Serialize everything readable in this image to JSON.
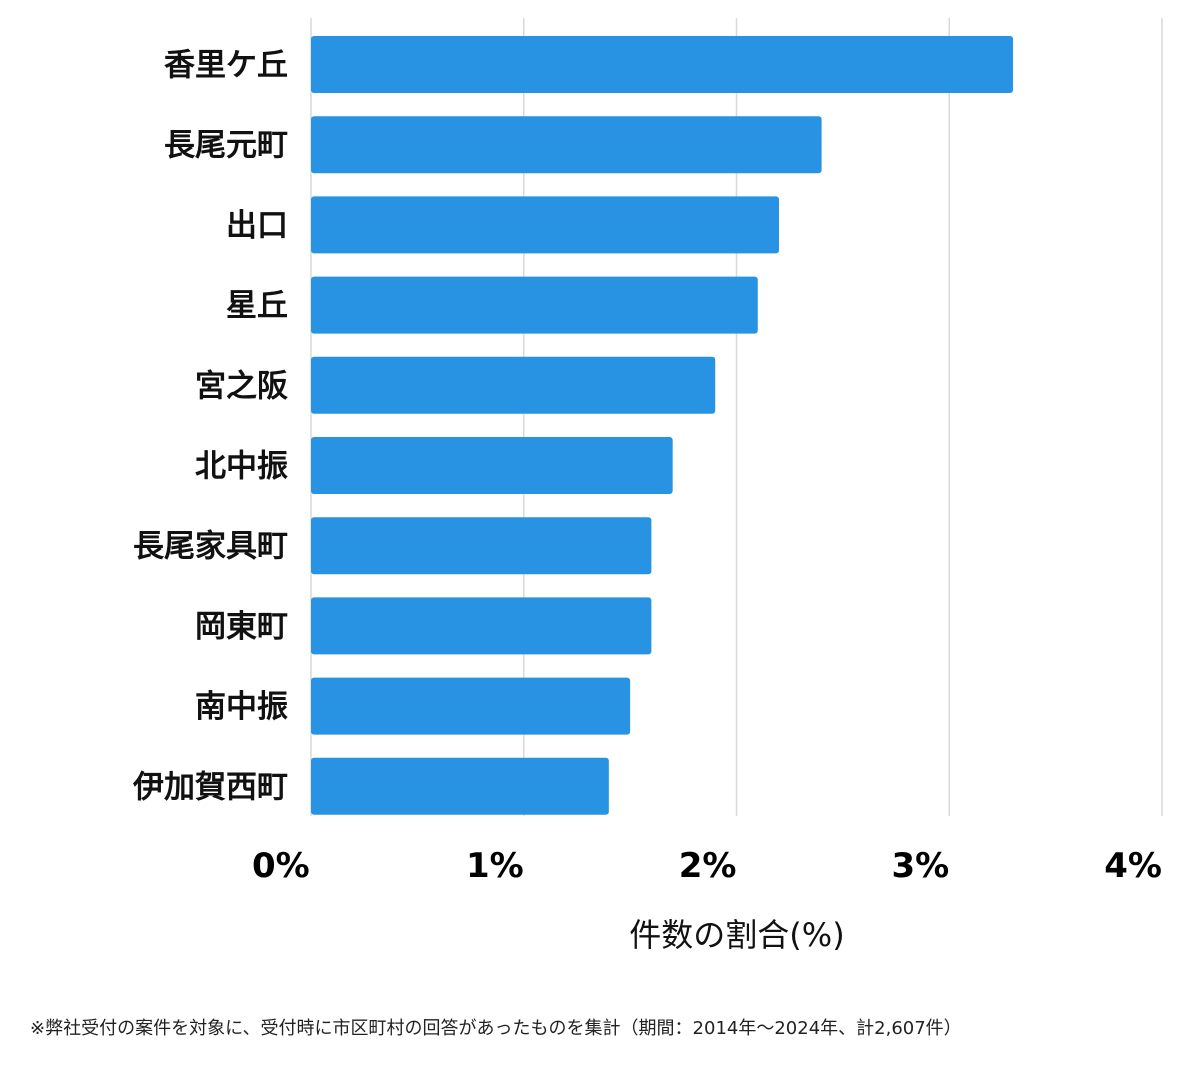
{
  "chart_data": {
    "type": "bar",
    "orientation": "horizontal",
    "categories": [
      "香里ケ丘",
      "長尾元町",
      "出口",
      "星丘",
      "宮之阪",
      "北中振",
      "長尾家具町",
      "岡東町",
      "南中振",
      "伊加賀西町"
    ],
    "values": [
      3.3,
      2.4,
      2.2,
      2.1,
      1.9,
      1.7,
      1.6,
      1.6,
      1.5,
      1.4
    ],
    "xlim": [
      0,
      4
    ],
    "xticks": [
      0,
      1,
      2,
      3,
      4
    ],
    "tick_labels": [
      "0%",
      "1%",
      "2%",
      "3%",
      "4%"
    ],
    "xlabel": "件数の割合(%)",
    "grid": true,
    "bar_color": "#2893e3",
    "grid_color": "#d9d9d9"
  },
  "footnote": "※弊社受付の案件を対象に、受付時に市区町村の回答があったものを集計（期間：2014年～2024年、計2,607件）"
}
